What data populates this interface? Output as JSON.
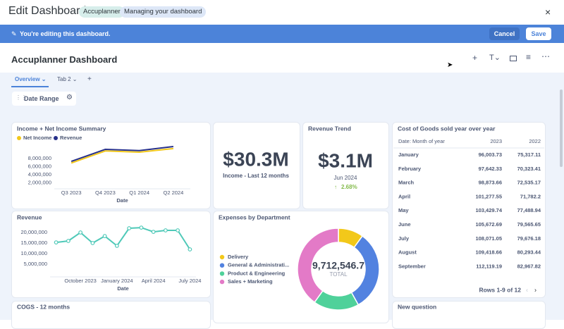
{
  "header": {
    "title": "Edit Dashboard",
    "tags": [
      "Accuplanner",
      "Managing your dashboard"
    ]
  },
  "edit_bar": {
    "message": "You're editing this dashboard.",
    "cancel": "Cancel",
    "save": "Save"
  },
  "dashboard": {
    "title": "Accuplanner Dashboard",
    "tabs": [
      "Overview",
      "Tab 2"
    ],
    "filter": "Date Range"
  },
  "cards": [
    {
      "title": "Income + Net Income Summary",
      "chart_data": {
        "type": "line",
        "x_label": "Date",
        "categories": [
          "Q3 2023",
          "Q4 2023",
          "Q1 2024",
          "Q2 2024"
        ],
        "series": [
          {
            "name": "Net Income",
            "color": "#f2c81a",
            "values": [
              6900000,
              9900000,
              9600000,
              10500000
            ]
          },
          {
            "name": "Revenue",
            "color": "#27308a",
            "values": [
              7300000,
              10300000,
              10000000,
              11000000
            ]
          }
        ],
        "ylim": [
          1000000,
          11000000
        ],
        "yticks": [
          {
            "value": 2000000,
            "label": "2,000,000"
          },
          {
            "value": 4000000,
            "label": "4,000,000"
          },
          {
            "value": 6000000,
            "label": "6,000,000"
          },
          {
            "value": 8000000,
            "label": "8,000,000"
          }
        ]
      }
    },
    {
      "value": "$30.3M",
      "label": "Income - Last 12 months"
    },
    {
      "title": "Revenue Trend",
      "value": "$3.1M",
      "period": "Jun 2024",
      "change": "2.68%"
    },
    {
      "title": "Cost of Goods sold year over year",
      "table": {
        "columns": [
          "Date: Month of year",
          "2023",
          "2022"
        ],
        "rows": [
          [
            "January",
            "96,003.73",
            "75,317.11"
          ],
          [
            "February",
            "97,642.33",
            "70,323.41"
          ],
          [
            "March",
            "98,873.66",
            "72,535.17"
          ],
          [
            "April",
            "101,277.55",
            "71,782.2"
          ],
          [
            "May",
            "103,429.74",
            "77,488.94"
          ],
          [
            "June",
            "105,672.69",
            "79,565.65"
          ],
          [
            "July",
            "108,071.05",
            "79,676.18"
          ],
          [
            "August",
            "109,418.66",
            "80,293.44"
          ],
          [
            "September",
            "112,119.19",
            "82,967.82"
          ]
        ]
      },
      "footer": "Rows 1-9 of 12"
    },
    {
      "title": "Revenue",
      "chart_data": {
        "type": "line",
        "x_label": "Date",
        "categories": [
          null,
          null,
          "October 2023",
          null,
          null,
          "January 2024",
          null,
          null,
          "April 2024",
          null,
          null,
          "July 2024"
        ],
        "series": [
          {
            "name": "Revenue",
            "color": "#4fc9b8",
            "values": [
              15300000,
              16000000,
              20000000,
              15000000,
              18300000,
              13700000,
              22000000,
              22300000,
              20300000,
              21000000,
              21000000,
              12000000
            ]
          }
        ],
        "ylim": [
          0,
          23000000
        ],
        "yticks": [
          {
            "value": 5000000,
            "label": "5,000,000"
          },
          {
            "value": 10000000,
            "label": "10,000,000"
          },
          {
            "value": 15000000,
            "label": "15,000,000"
          },
          {
            "value": 20000000,
            "label": "20,000,000"
          }
        ]
      }
    },
    {
      "title": "Expenses by Department",
      "chart_data": {
        "type": "donut",
        "categories": [
          "Delivery",
          "General & Administrati...",
          "Product & Engineering",
          "Sales + Marketing"
        ],
        "values": [
          970000,
          3100000,
          1750000,
          3892546.7
        ],
        "colors": [
          "#f2c81a",
          "#5282e0",
          "#4fd19a",
          "#e37ac7"
        ],
        "total_label": "9,712,546.7",
        "total_caption": "TOTAL"
      }
    },
    {
      "title": "COGS - 12 months"
    },
    {
      "title": "New question"
    }
  ]
}
